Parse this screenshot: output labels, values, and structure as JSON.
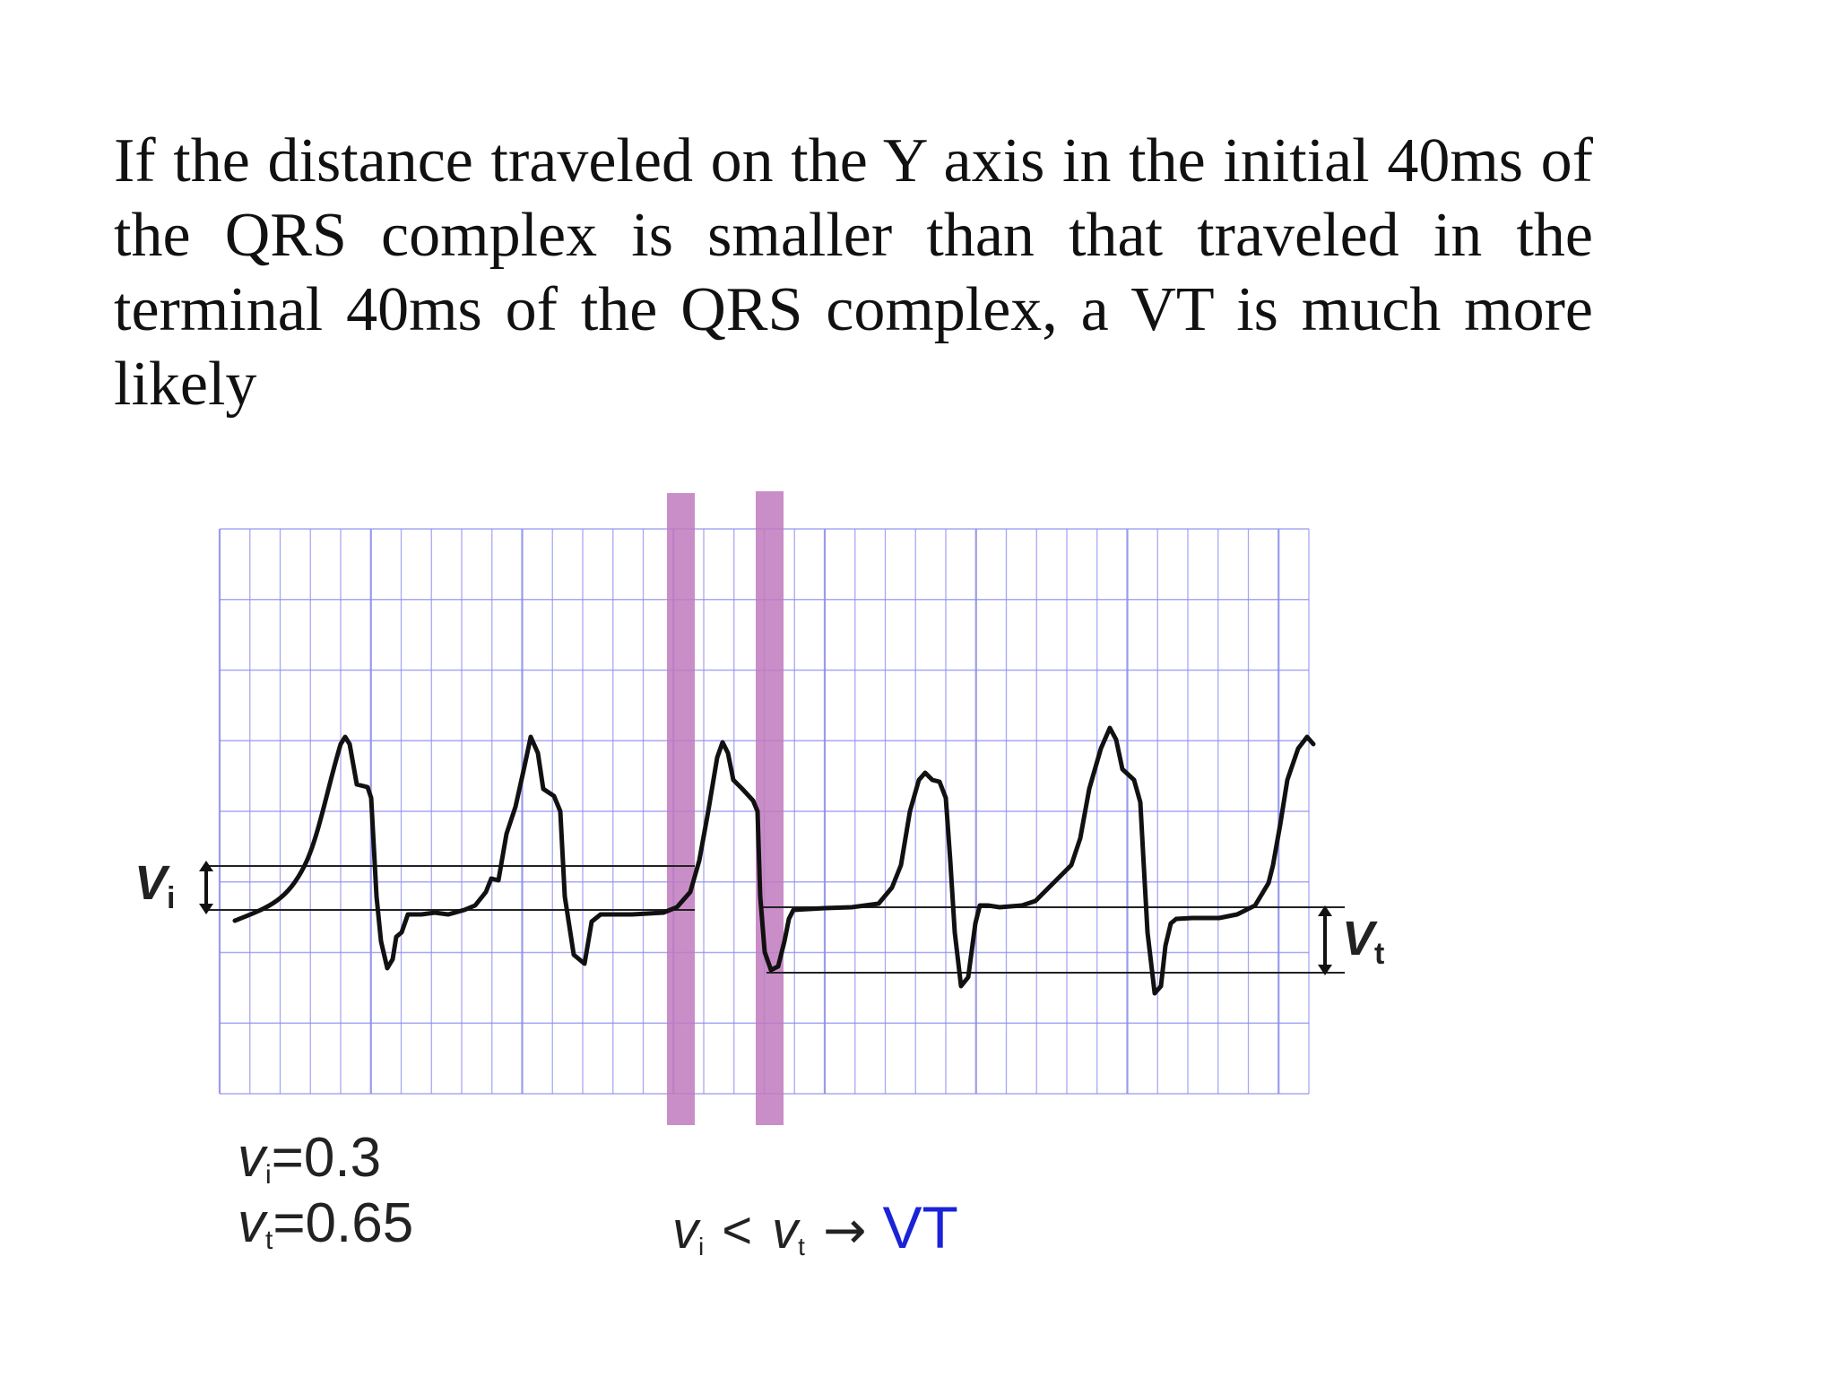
{
  "slide": {
    "paragraph": "If the distance traveled on the Y axis in the initial 40ms of the QRS complex is smaller than that traveled in the terminal 40ms of the QRS complex, a VT is much more likely"
  },
  "figure": {
    "vi_label": {
      "main": "V",
      "sub": "i"
    },
    "vt_label": {
      "main": "V",
      "sub": "t"
    },
    "vi_value": {
      "main": "v",
      "sub": "i",
      "value": "=0.3"
    },
    "vt_value": {
      "main": "v",
      "sub": "t",
      "value": "=0.65"
    },
    "formula": {
      "left_main": "v",
      "left_sub": "i",
      "op": "<",
      "right_main": "v",
      "right_sub": "t",
      "arrow": "→",
      "result": "VT"
    },
    "colors": {
      "grid": "#8c8cf0",
      "grid_major": "#7a7ae6",
      "band": "#c07abd",
      "trace": "#111111",
      "result": "#1a23d6"
    },
    "icons": [
      "double-arrow-icon"
    ]
  }
}
